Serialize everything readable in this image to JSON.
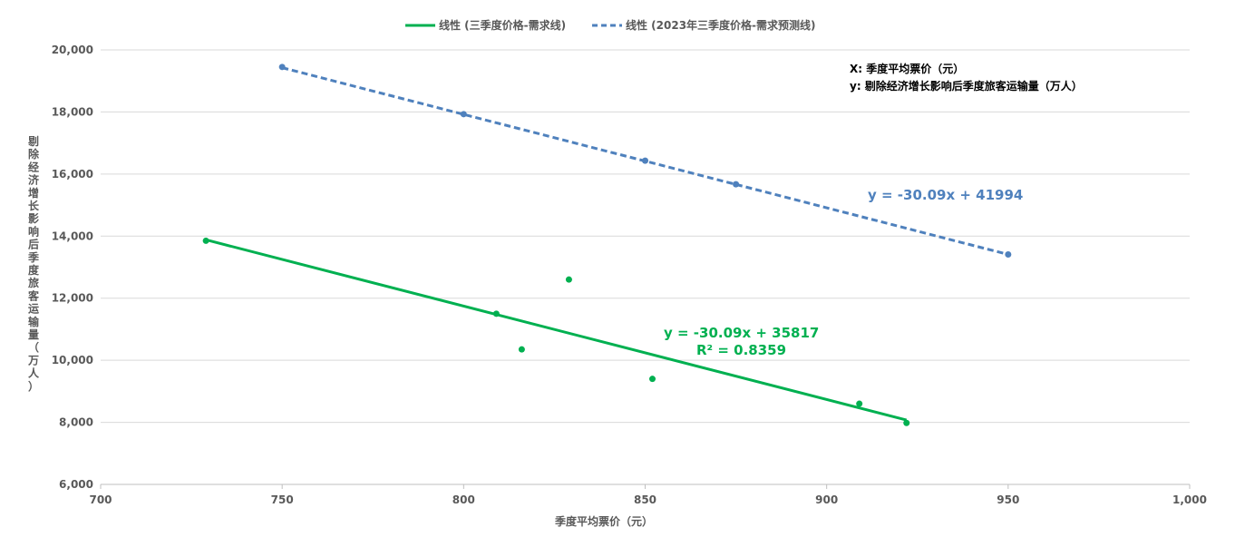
{
  "chart_data": {
    "type": "scatter",
    "legend": {
      "position": "top",
      "entries": [
        {
          "label": "线性 (三季度价格-需求线)",
          "color": "#00B050",
          "style": "solid"
        },
        {
          "label": "线性 (2023年三季度价格-需求预测线)",
          "color": "#4F81BD",
          "style": "dashed"
        }
      ]
    },
    "xlabel": "季度平均票价（元）",
    "ylabel": "剔除经济增长影响后季度旅客运输量（万人）",
    "xlim": [
      700,
      1000
    ],
    "ylim": [
      6000,
      20000
    ],
    "x_ticks": [
      "700",
      "750",
      "800",
      "850",
      "900",
      "950",
      "1,000"
    ],
    "y_ticks": [
      "6,000",
      "8,000",
      "10,000",
      "12,000",
      "14,000",
      "16,000",
      "18,000",
      "20,000"
    ],
    "grid": "horizontal",
    "notes": [
      "X: 季度平均票价（元）",
      "y: 剔除经济增长影响后季度旅客运输量（万人）"
    ],
    "series": [
      {
        "points": [
          {
            "x": 729,
            "y": 13850
          },
          {
            "x": 809,
            "y": 11500
          },
          {
            "x": 816,
            "y": 10350
          },
          {
            "x": 829,
            "y": 12600
          },
          {
            "x": 852,
            "y": 9400
          },
          {
            "x": 909,
            "y": 8600
          },
          {
            "x": 922,
            "y": 7980
          }
        ],
        "color": "#00B050",
        "trendline": {
          "equation": "y = -30.09x + 35817",
          "r2": "R² = 0.8359",
          "slope": -30.09,
          "intercept": 35817,
          "x_range": [
            729,
            922
          ],
          "style": "solid"
        }
      },
      {
        "points": [
          {
            "x": 750,
            "y": 19450
          },
          {
            "x": 800,
            "y": 17930
          },
          {
            "x": 850,
            "y": 16430
          },
          {
            "x": 875,
            "y": 15670
          },
          {
            "x": 950,
            "y": 13410
          }
        ],
        "color": "#4F81BD",
        "trendline": {
          "equation": "y = -30.09x + 41994",
          "slope": -30.09,
          "intercept": 41994,
          "x_range": [
            750,
            950
          ],
          "style": "dashed"
        }
      }
    ]
  }
}
